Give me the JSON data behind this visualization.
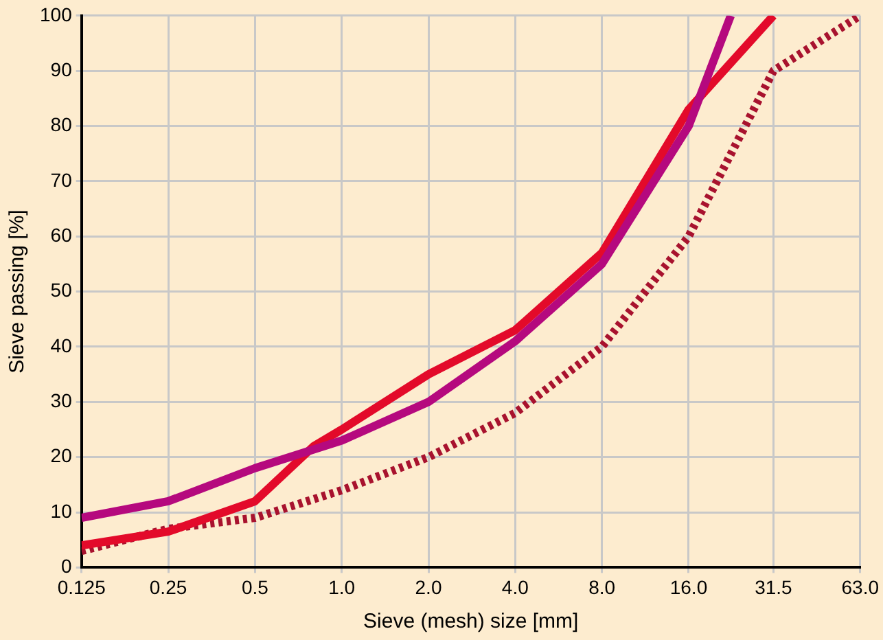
{
  "chart_data": {
    "type": "line",
    "xlabel": "Sieve (mesh) size [mm]",
    "ylabel": "Sieve passing [%]",
    "log": "x",
    "xlim": [
      0.125,
      63
    ],
    "ylim": [
      0,
      100
    ],
    "xticks": [
      0.125,
      0.25,
      0.5,
      {
        "value": 1,
        "label": "1.0"
      },
      {
        "value": 2,
        "label": "2.0"
      },
      {
        "value": 4,
        "label": "4.0"
      },
      {
        "value": 8,
        "label": "8.0"
      },
      {
        "value": 16,
        "label": "16.0"
      },
      31.5,
      {
        "value": 63,
        "label": "63.0"
      }
    ],
    "yticks": [
      0,
      10,
      20,
      30,
      40,
      50,
      60,
      70,
      80,
      90,
      100
    ],
    "grid": true,
    "legend": false,
    "marker": "none",
    "series": [
      {
        "color": "#b5097e",
        "line_style": "solid",
        "x": [
          0.125,
          0.25,
          0.5,
          1,
          2,
          4,
          8,
          16,
          22.4
        ],
        "values": [
          9,
          12,
          18,
          23,
          30,
          41,
          55,
          80,
          100
        ]
      },
      {
        "color": "#e30a2a",
        "line_style": "solid",
        "x": [
          0.125,
          0.25,
          0.5,
          0.8,
          1,
          2,
          4,
          8,
          16,
          31.5
        ],
        "values": [
          4,
          6.5,
          12,
          22,
          25,
          35,
          43,
          57,
          83,
          100
        ]
      },
      {
        "color": "#a8122e",
        "line_style": "dotted",
        "x": [
          0.125,
          0.25,
          0.5,
          1,
          2,
          4,
          8,
          16,
          31.5,
          63
        ],
        "values": [
          3,
          7,
          9,
          14,
          20,
          28,
          40,
          60,
          90,
          100
        ]
      }
    ]
  }
}
